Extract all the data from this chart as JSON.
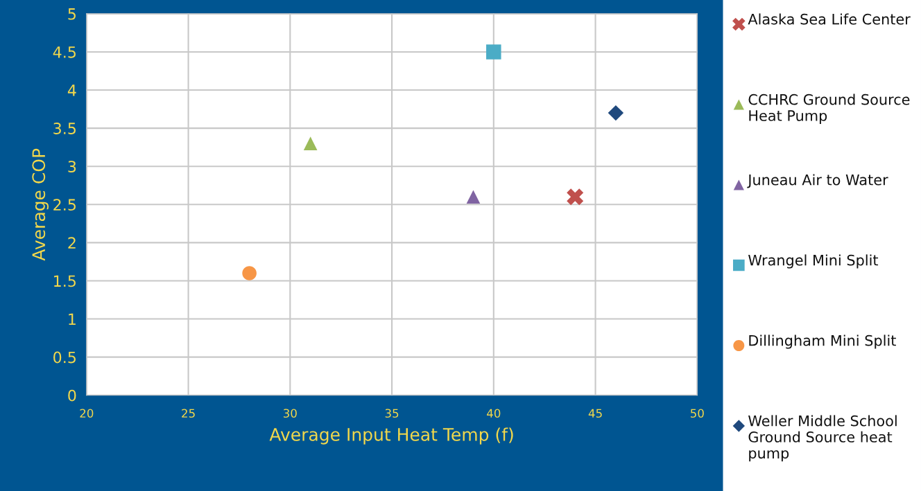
{
  "chart_data": {
    "type": "scatter",
    "xlabel": "Average Input Heat Temp (f)",
    "ylabel": "Average COP",
    "xlim": [
      20,
      50
    ],
    "xticks": [
      20,
      25,
      30,
      35,
      40,
      45,
      50
    ],
    "ylim": [
      0,
      5
    ],
    "yticks": [
      0,
      0.5,
      1,
      1.5,
      2,
      2.5,
      3,
      3.5,
      4,
      4.5,
      5
    ],
    "grid": true,
    "legend": "right",
    "series": [
      {
        "name": "Alaska Sea Life Center",
        "color": "#c0504d",
        "marker": "cross",
        "x": [
          44
        ],
        "values": [
          2.6
        ]
      },
      {
        "name": "CCHRC Ground Source Heat Pump",
        "color": "#9bbb59",
        "marker": "triangle",
        "x": [
          31
        ],
        "values": [
          3.3
        ]
      },
      {
        "name": "Juneau Air to Water",
        "color": "#8064a2",
        "marker": "triangle",
        "x": [
          39
        ],
        "values": [
          2.6
        ]
      },
      {
        "name": "Wrangel Mini Split",
        "color": "#4bacc6",
        "marker": "square",
        "x": [
          40
        ],
        "values": [
          4.5
        ]
      },
      {
        "name": "Dillingham Mini Split",
        "color": "#f79646",
        "marker": "circle",
        "x": [
          28
        ],
        "values": [
          1.6
        ]
      },
      {
        "name": "Weller Middle School Ground Source heat pump",
        "color": "#1f497d",
        "marker": "diamond",
        "x": [
          46
        ],
        "values": [
          3.7
        ]
      }
    ]
  }
}
